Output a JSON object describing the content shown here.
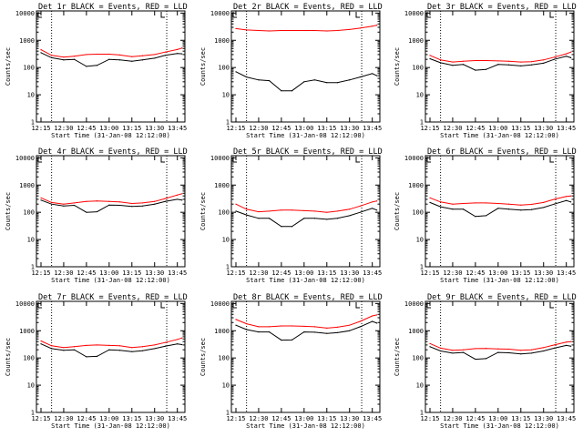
{
  "figure": {
    "xlabel": "Start Time (31-Jan-08 12:12:00)",
    "ylabel": "Counts/sec",
    "x_tick_labels": [
      "12:15",
      "12:30",
      "12:45",
      "13:00",
      "13:15",
      "13:30",
      "13:45"
    ],
    "y_tick_labels": [
      "1",
      "10",
      "100",
      "1000",
      "10000"
    ],
    "colors": {
      "events": "#000000",
      "lld": "#ff0000"
    }
  },
  "chart_data": [
    {
      "type": "line",
      "title": "Det 1r BLACK = Events, RED = LLD",
      "x": [
        "12:15",
        "12:22",
        "12:30",
        "12:37",
        "12:45",
        "12:52",
        "13:00",
        "13:07",
        "13:15",
        "13:22",
        "13:30",
        "13:37",
        "13:45",
        "13:48"
      ],
      "xlim": [
        "12:12",
        "13:50"
      ],
      "ylim": [
        1,
        12000
      ],
      "yscale": "log",
      "markers": [
        "12:22",
        "13:38"
      ],
      "series": [
        {
          "name": "Events",
          "color": "#000000",
          "values": [
            350,
            230,
            190,
            200,
            110,
            120,
            200,
            190,
            170,
            190,
            220,
            280,
            330,
            320
          ]
        },
        {
          "name": "LLD",
          "color": "#ff0000",
          "values": [
            450,
            280,
            240,
            260,
            300,
            310,
            310,
            290,
            250,
            270,
            300,
            370,
            460,
            520
          ]
        }
      ]
    },
    {
      "type": "line",
      "title": "Det 2r BLACK = Events, RED = LLD",
      "x": [
        "12:15",
        "12:22",
        "12:30",
        "12:37",
        "12:45",
        "12:52",
        "13:00",
        "13:07",
        "13:15",
        "13:22",
        "13:30",
        "13:37",
        "13:45",
        "13:48"
      ],
      "xlim": [
        "12:12",
        "13:50"
      ],
      "ylim": [
        1,
        12000
      ],
      "yscale": "log",
      "markers": [
        "12:22",
        "13:38"
      ],
      "series": [
        {
          "name": "Events",
          "color": "#000000",
          "values": [
            70,
            45,
            35,
            33,
            14,
            14,
            30,
            35,
            28,
            28,
            35,
            45,
            60,
            50
          ]
        },
        {
          "name": "LLD",
          "color": "#ff0000",
          "values": [
            2700,
            2400,
            2300,
            2200,
            2300,
            2300,
            2300,
            2300,
            2200,
            2300,
            2500,
            2800,
            3300,
            3600
          ]
        }
      ]
    },
    {
      "type": "line",
      "title": "Det 3r BLACK = Events, RED = LLD",
      "x": [
        "12:15",
        "12:22",
        "12:30",
        "12:37",
        "12:45",
        "12:52",
        "13:00",
        "13:07",
        "13:15",
        "13:22",
        "13:30",
        "13:37",
        "13:45",
        "13:48"
      ],
      "xlim": [
        "12:12",
        "13:50"
      ],
      "ylim": [
        1,
        12000
      ],
      "yscale": "log",
      "markers": [
        "12:22",
        "13:38"
      ],
      "series": [
        {
          "name": "Events",
          "color": "#000000",
          "values": [
            210,
            150,
            120,
            130,
            80,
            85,
            130,
            125,
            115,
            125,
            145,
            200,
            260,
            230
          ]
        },
        {
          "name": "LLD",
          "color": "#ff0000",
          "values": [
            280,
            190,
            160,
            170,
            180,
            180,
            175,
            170,
            160,
            165,
            190,
            240,
            320,
            370
          ]
        }
      ]
    },
    {
      "type": "line",
      "title": "Det 4r BLACK = Events, RED = LLD",
      "x": [
        "12:15",
        "12:22",
        "12:30",
        "12:37",
        "12:45",
        "12:52",
        "13:00",
        "13:07",
        "13:15",
        "13:22",
        "13:30",
        "13:37",
        "13:45",
        "13:48"
      ],
      "xlim": [
        "12:12",
        "13:50"
      ],
      "ylim": [
        1,
        12000
      ],
      "yscale": "log",
      "markers": [
        "12:22",
        "13:38"
      ],
      "series": [
        {
          "name": "Events",
          "color": "#000000",
          "values": [
            280,
            200,
            170,
            180,
            100,
            105,
            185,
            180,
            165,
            170,
            200,
            250,
            300,
            280
          ]
        },
        {
          "name": "LLD",
          "color": "#ff0000",
          "values": [
            340,
            230,
            200,
            220,
            250,
            260,
            250,
            240,
            210,
            220,
            250,
            320,
            430,
            480
          ]
        }
      ]
    },
    {
      "type": "line",
      "title": "Det 5r BLACK = Events, RED = LLD",
      "x": [
        "12:15",
        "12:22",
        "12:30",
        "12:37",
        "12:45",
        "12:52",
        "13:00",
        "13:07",
        "13:15",
        "13:22",
        "13:30",
        "13:37",
        "13:45",
        "13:48"
      ],
      "xlim": [
        "12:12",
        "13:50"
      ],
      "ylim": [
        1,
        12000
      ],
      "yscale": "log",
      "markers": [
        "12:22",
        "13:38"
      ],
      "series": [
        {
          "name": "Events",
          "color": "#000000",
          "values": [
            110,
            80,
            60,
            60,
            30,
            30,
            60,
            60,
            55,
            60,
            75,
            100,
            140,
            120
          ]
        },
        {
          "name": "LLD",
          "color": "#ff0000",
          "values": [
            200,
            130,
            105,
            110,
            120,
            120,
            115,
            110,
            100,
            110,
            130,
            170,
            240,
            260
          ]
        }
      ]
    },
    {
      "type": "line",
      "title": "Det 6r BLACK = Events, RED = LLD",
      "x": [
        "12:15",
        "12:22",
        "12:30",
        "12:37",
        "12:45",
        "12:52",
        "13:00",
        "13:07",
        "13:15",
        "13:22",
        "13:30",
        "13:37",
        "13:45",
        "13:48"
      ],
      "xlim": [
        "12:12",
        "13:50"
      ],
      "ylim": [
        1,
        12000
      ],
      "yscale": "log",
      "markers": [
        "12:22",
        "13:38"
      ],
      "series": [
        {
          "name": "Events",
          "color": "#000000",
          "values": [
            230,
            160,
            130,
            130,
            70,
            75,
            140,
            130,
            120,
            125,
            150,
            200,
            270,
            240
          ]
        },
        {
          "name": "LLD",
          "color": "#ff0000",
          "values": [
            340,
            240,
            200,
            210,
            220,
            220,
            210,
            200,
            185,
            195,
            230,
            300,
            380,
            400
          ]
        }
      ]
    },
    {
      "type": "line",
      "title": "Det 7r BLACK = Events, RED = LLD",
      "x": [
        "12:15",
        "12:22",
        "12:30",
        "12:37",
        "12:45",
        "12:52",
        "13:00",
        "13:07",
        "13:15",
        "13:22",
        "13:30",
        "13:37",
        "13:45",
        "13:48"
      ],
      "xlim": [
        "12:12",
        "13:50"
      ],
      "ylim": [
        1,
        12000
      ],
      "yscale": "log",
      "markers": [
        "12:22",
        "13:38"
      ],
      "series": [
        {
          "name": "Events",
          "color": "#000000",
          "values": [
            330,
            220,
            190,
            200,
            110,
            115,
            200,
            190,
            170,
            185,
            220,
            270,
            330,
            310
          ]
        },
        {
          "name": "LLD",
          "color": "#ff0000",
          "values": [
            420,
            280,
            240,
            260,
            290,
            300,
            290,
            280,
            240,
            260,
            300,
            370,
            480,
            540
          ]
        }
      ]
    },
    {
      "type": "line",
      "title": "Det 8r BLACK = Events, RED = LLD",
      "x": [
        "12:15",
        "12:22",
        "12:30",
        "12:37",
        "12:45",
        "12:52",
        "13:00",
        "13:07",
        "13:15",
        "13:22",
        "13:30",
        "13:37",
        "13:45",
        "13:48"
      ],
      "xlim": [
        "12:12",
        "13:50"
      ],
      "ylim": [
        1,
        12000
      ],
      "yscale": "log",
      "markers": [
        "12:22",
        "13:38"
      ],
      "series": [
        {
          "name": "Events",
          "color": "#000000",
          "values": [
            1600,
            1100,
            900,
            900,
            450,
            460,
            900,
            880,
            800,
            850,
            1000,
            1400,
            2200,
            1900
          ]
        },
        {
          "name": "LLD",
          "color": "#ff0000",
          "values": [
            2600,
            1800,
            1400,
            1400,
            1500,
            1500,
            1450,
            1400,
            1250,
            1350,
            1600,
            2200,
            3500,
            3800
          ]
        }
      ]
    },
    {
      "type": "line",
      "title": "Det 9r BLACK = Events, RED = LLD",
      "x": [
        "12:15",
        "12:22",
        "12:30",
        "12:37",
        "12:45",
        "12:52",
        "13:00",
        "13:07",
        "13:15",
        "13:22",
        "13:30",
        "13:37",
        "13:45",
        "13:48"
      ],
      "xlim": [
        "12:12",
        "13:50"
      ],
      "ylim": [
        1,
        12000
      ],
      "yscale": "log",
      "markers": [
        "12:22",
        "13:38"
      ],
      "series": [
        {
          "name": "Events",
          "color": "#000000",
          "values": [
            260,
            180,
            150,
            160,
            90,
            95,
            160,
            155,
            140,
            150,
            180,
            230,
            290,
            270
          ]
        },
        {
          "name": "LLD",
          "color": "#ff0000",
          "values": [
            340,
            230,
            190,
            200,
            220,
            225,
            215,
            210,
            190,
            200,
            240,
            300,
            380,
            400
          ]
        }
      ]
    }
  ]
}
